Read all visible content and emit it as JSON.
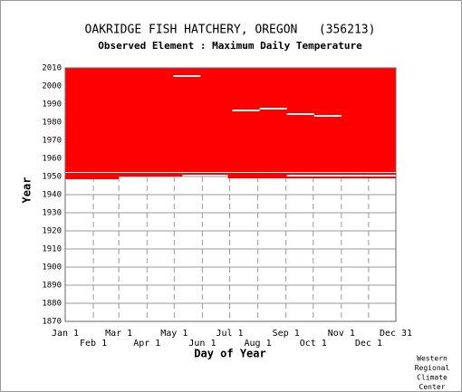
{
  "chart_data": {
    "type": "coverage",
    "title": "OAKRIDGE FISH HATCHERY, OREGON   (356213)",
    "subtitle": "Observed Element : Maximum Daily Temperature",
    "xlabel": "Day of Year",
    "ylabel": "Year",
    "credit": [
      "Western",
      "Regional",
      "Climate",
      "Center"
    ],
    "xlim": [
      1,
      365
    ],
    "ylim": [
      1870,
      2010
    ],
    "yticks": [
      1870,
      1880,
      1890,
      1900,
      1910,
      1920,
      1930,
      1940,
      1950,
      1960,
      1970,
      1980,
      1990,
      2000,
      2010
    ],
    "xticks": [
      {
        "value": 1,
        "label": "Jan 1"
      },
      {
        "value": 32,
        "label": "Feb 1"
      },
      {
        "value": 60,
        "label": "Mar 1"
      },
      {
        "value": 91,
        "label": "Apr 1"
      },
      {
        "value": 121,
        "label": "May 1"
      },
      {
        "value": 152,
        "label": "Jun 1"
      },
      {
        "value": 182,
        "label": "Jul 1"
      },
      {
        "value": 213,
        "label": "Aug 1"
      },
      {
        "value": 244,
        "label": "Sep 1"
      },
      {
        "value": 274,
        "label": "Oct 1"
      },
      {
        "value": 305,
        "label": "Nov 1"
      },
      {
        "value": 335,
        "label": "Dec 1"
      },
      {
        "value": 365,
        "label": "Dec 31"
      }
    ],
    "grid": true,
    "observed_color": "#ff0000",
    "missing_color": "#ffffff",
    "observed_blocks": [
      {
        "days": [
          1,
          365
        ],
        "years": [
          1953,
          2010
        ]
      },
      {
        "days": [
          1,
          130
        ],
        "years": [
          1950,
          1953
        ]
      },
      {
        "days": [
          130,
          180
        ],
        "years": [
          1951,
          1953
        ]
      },
      {
        "days": [
          180,
          365
        ],
        "years": [
          1949,
          1953
        ]
      },
      {
        "days": [
          1,
          60
        ],
        "years": [
          1948.5,
          1950
        ]
      }
    ],
    "missing_blocks": [
      {
        "days": [
          120,
          150
        ],
        "years": [
          2005,
          2006
        ]
      },
      {
        "days": [
          185,
          215
        ],
        "years": [
          1986,
          1987
        ]
      },
      {
        "days": [
          215,
          245
        ],
        "years": [
          1987,
          1988
        ]
      },
      {
        "days": [
          245,
          275
        ],
        "years": [
          1984,
          1985
        ]
      },
      {
        "days": [
          275,
          305
        ],
        "years": [
          1983,
          1984
        ]
      },
      {
        "days": [
          1,
          365
        ],
        "years": [
          1952,
          1952.5
        ]
      },
      {
        "days": [
          245,
          365
        ],
        "years": [
          1950,
          1951
        ]
      }
    ]
  }
}
